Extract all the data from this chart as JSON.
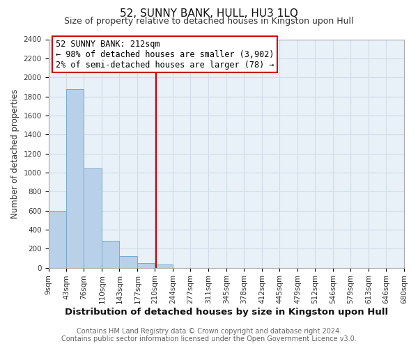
{
  "title": "52, SUNNY BANK, HULL, HU3 1LQ",
  "subtitle": "Size of property relative to detached houses in Kingston upon Hull",
  "xlabel": "Distribution of detached houses by size in Kingston upon Hull",
  "ylabel": "Number of detached properties",
  "bin_edges": [
    9,
    43,
    76,
    110,
    143,
    177,
    210,
    244,
    277,
    311,
    345,
    378,
    412,
    445,
    479,
    512,
    546,
    579,
    613,
    646,
    680
  ],
  "bar_heights": [
    600,
    1880,
    1040,
    280,
    120,
    50,
    30,
    0,
    0,
    0,
    0,
    0,
    0,
    0,
    0,
    0,
    0,
    0,
    0,
    0
  ],
  "bar_color": "#b8d0e8",
  "bar_edge_color": "#7aaacb",
  "grid_color": "#d0dde8",
  "vline_x": 212,
  "vline_color": "#cc0000",
  "ylim": [
    0,
    2400
  ],
  "yticks": [
    0,
    200,
    400,
    600,
    800,
    1000,
    1200,
    1400,
    1600,
    1800,
    2000,
    2200,
    2400
  ],
  "annotation_title": "52 SUNNY BANK: 212sqm",
  "annotation_line1": "← 98% of detached houses are smaller (3,902)",
  "annotation_line2": "2% of semi-detached houses are larger (78) →",
  "annotation_box_color": "#ffffff",
  "annotation_box_edge": "#cc0000",
  "footer_line1": "Contains HM Land Registry data © Crown copyright and database right 2024.",
  "footer_line2": "Contains public sector information licensed under the Open Government Licence v3.0.",
  "background_color": "#ffffff",
  "plot_background": "#e8f0f8",
  "title_fontsize": 11,
  "subtitle_fontsize": 9,
  "xlabel_fontsize": 9.5,
  "ylabel_fontsize": 8.5,
  "tick_label_fontsize": 7.5,
  "footer_fontsize": 7,
  "annotation_fontsize": 8.5
}
